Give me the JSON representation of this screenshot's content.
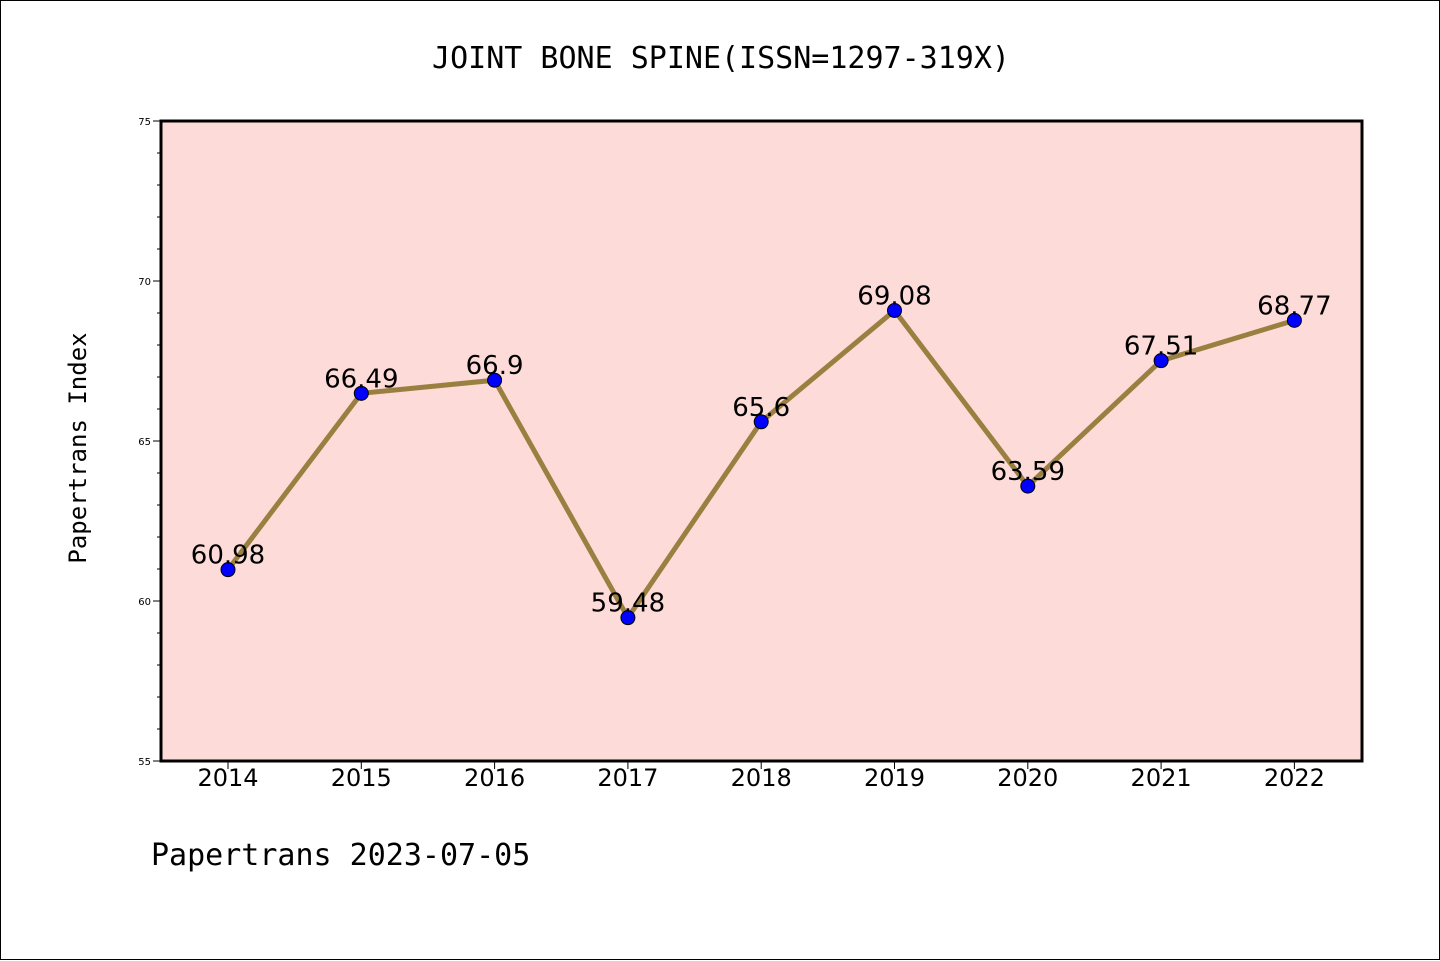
{
  "chart_data": {
    "type": "line",
    "title": "JOINT BONE SPINE(ISSN=1297-319X)",
    "ylabel": "Papertrans Index",
    "xlabel": "",
    "categories": [
      "2014",
      "2015",
      "2016",
      "2017",
      "2018",
      "2019",
      "2020",
      "2021",
      "2022"
    ],
    "series": [
      {
        "values": [
          60.98,
          66.49,
          66.9,
          59.48,
          65.6,
          69.08,
          63.59,
          67.51,
          68.77
        ],
        "data_labels": [
          "60.98",
          "66.49",
          "66.9",
          "59.48",
          "65.6",
          "69.08",
          "63.59",
          "67.51",
          "68.77"
        ]
      }
    ],
    "ylim": [
      55,
      75
    ],
    "yticks": [
      "55",
      "60",
      "65",
      "70",
      "75"
    ],
    "grid": false,
    "legend": "none",
    "colors": {
      "plot_background": "#fddbd8",
      "line": "#9a8040",
      "marker": "#0000ff",
      "axes": "#000000"
    }
  },
  "footer": {
    "text": "Papertrans 2023-07-05"
  }
}
